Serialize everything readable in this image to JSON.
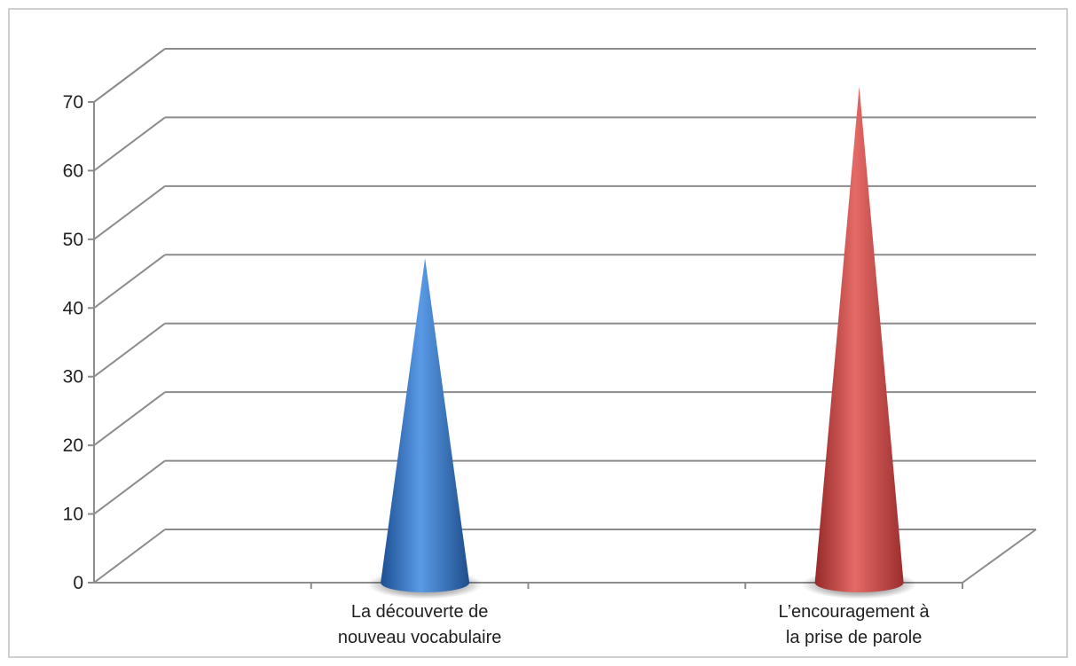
{
  "chart_data": {
    "type": "bar",
    "shape": "cone",
    "projection": "3d",
    "title": "",
    "xlabel": "",
    "ylabel": "",
    "ylim": [
      0,
      70
    ],
    "yticks": [
      0,
      10,
      20,
      30,
      40,
      50,
      60,
      70
    ],
    "grid": true,
    "legend": "none",
    "categories": [
      [
        "La découverte de",
        "nouveau vocabulaire"
      ],
      [
        "L’encouragement à",
        "la prise de parole"
      ]
    ],
    "values": [
      47,
      72
    ],
    "colors": [
      "#3c78c8",
      "#cc4a48"
    ]
  }
}
